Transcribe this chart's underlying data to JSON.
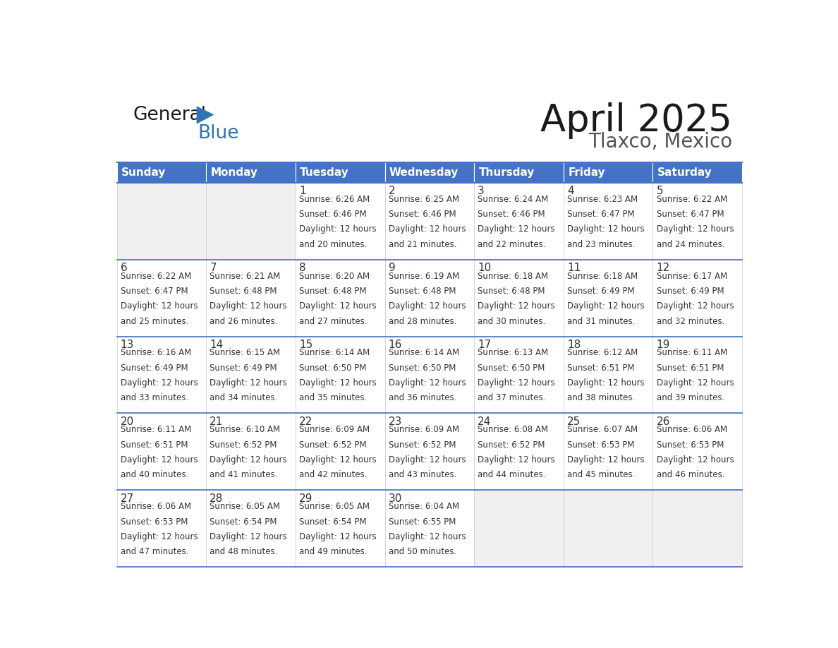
{
  "title": "April 2025",
  "subtitle": "Tlaxco, Mexico",
  "header_color": "#4472C4",
  "header_text_color": "#FFFFFF",
  "cell_bg_color": "#FFFFFF",
  "empty_cell_bg_color": "#F0F0F0",
  "border_color": "#4472C4",
  "separator_color": "#4472C4",
  "text_color": "#333333",
  "days_of_week": [
    "Sunday",
    "Monday",
    "Tuesday",
    "Wednesday",
    "Thursday",
    "Friday",
    "Saturday"
  ],
  "logo_color": "#2E75B6",
  "logo_black": "#1a1a1a",
  "calendar_data": [
    [
      {
        "day": "",
        "sunrise": "",
        "sunset": "",
        "daylight": ""
      },
      {
        "day": "",
        "sunrise": "",
        "sunset": "",
        "daylight": ""
      },
      {
        "day": "1",
        "sunrise": "6:26 AM",
        "sunset": "6:46 PM",
        "daylight": "12 hours and 20 minutes."
      },
      {
        "day": "2",
        "sunrise": "6:25 AM",
        "sunset": "6:46 PM",
        "daylight": "12 hours and 21 minutes."
      },
      {
        "day": "3",
        "sunrise": "6:24 AM",
        "sunset": "6:46 PM",
        "daylight": "12 hours and 22 minutes."
      },
      {
        "day": "4",
        "sunrise": "6:23 AM",
        "sunset": "6:47 PM",
        "daylight": "12 hours and 23 minutes."
      },
      {
        "day": "5",
        "sunrise": "6:22 AM",
        "sunset": "6:47 PM",
        "daylight": "12 hours and 24 minutes."
      }
    ],
    [
      {
        "day": "6",
        "sunrise": "6:22 AM",
        "sunset": "6:47 PM",
        "daylight": "12 hours and 25 minutes."
      },
      {
        "day": "7",
        "sunrise": "6:21 AM",
        "sunset": "6:48 PM",
        "daylight": "12 hours and 26 minutes."
      },
      {
        "day": "8",
        "sunrise": "6:20 AM",
        "sunset": "6:48 PM",
        "daylight": "12 hours and 27 minutes."
      },
      {
        "day": "9",
        "sunrise": "6:19 AM",
        "sunset": "6:48 PM",
        "daylight": "12 hours and 28 minutes."
      },
      {
        "day": "10",
        "sunrise": "6:18 AM",
        "sunset": "6:48 PM",
        "daylight": "12 hours and 30 minutes."
      },
      {
        "day": "11",
        "sunrise": "6:18 AM",
        "sunset": "6:49 PM",
        "daylight": "12 hours and 31 minutes."
      },
      {
        "day": "12",
        "sunrise": "6:17 AM",
        "sunset": "6:49 PM",
        "daylight": "12 hours and 32 minutes."
      }
    ],
    [
      {
        "day": "13",
        "sunrise": "6:16 AM",
        "sunset": "6:49 PM",
        "daylight": "12 hours and 33 minutes."
      },
      {
        "day": "14",
        "sunrise": "6:15 AM",
        "sunset": "6:49 PM",
        "daylight": "12 hours and 34 minutes."
      },
      {
        "day": "15",
        "sunrise": "6:14 AM",
        "sunset": "6:50 PM",
        "daylight": "12 hours and 35 minutes."
      },
      {
        "day": "16",
        "sunrise": "6:14 AM",
        "sunset": "6:50 PM",
        "daylight": "12 hours and 36 minutes."
      },
      {
        "day": "17",
        "sunrise": "6:13 AM",
        "sunset": "6:50 PM",
        "daylight": "12 hours and 37 minutes."
      },
      {
        "day": "18",
        "sunrise": "6:12 AM",
        "sunset": "6:51 PM",
        "daylight": "12 hours and 38 minutes."
      },
      {
        "day": "19",
        "sunrise": "6:11 AM",
        "sunset": "6:51 PM",
        "daylight": "12 hours and 39 minutes."
      }
    ],
    [
      {
        "day": "20",
        "sunrise": "6:11 AM",
        "sunset": "6:51 PM",
        "daylight": "12 hours and 40 minutes."
      },
      {
        "day": "21",
        "sunrise": "6:10 AM",
        "sunset": "6:52 PM",
        "daylight": "12 hours and 41 minutes."
      },
      {
        "day": "22",
        "sunrise": "6:09 AM",
        "sunset": "6:52 PM",
        "daylight": "12 hours and 42 minutes."
      },
      {
        "day": "23",
        "sunrise": "6:09 AM",
        "sunset": "6:52 PM",
        "daylight": "12 hours and 43 minutes."
      },
      {
        "day": "24",
        "sunrise": "6:08 AM",
        "sunset": "6:52 PM",
        "daylight": "12 hours and 44 minutes."
      },
      {
        "day": "25",
        "sunrise": "6:07 AM",
        "sunset": "6:53 PM",
        "daylight": "12 hours and 45 minutes."
      },
      {
        "day": "26",
        "sunrise": "6:06 AM",
        "sunset": "6:53 PM",
        "daylight": "12 hours and 46 minutes."
      }
    ],
    [
      {
        "day": "27",
        "sunrise": "6:06 AM",
        "sunset": "6:53 PM",
        "daylight": "12 hours and 47 minutes."
      },
      {
        "day": "28",
        "sunrise": "6:05 AM",
        "sunset": "6:54 PM",
        "daylight": "12 hours and 48 minutes."
      },
      {
        "day": "29",
        "sunrise": "6:05 AM",
        "sunset": "6:54 PM",
        "daylight": "12 hours and 49 minutes."
      },
      {
        "day": "30",
        "sunrise": "6:04 AM",
        "sunset": "6:55 PM",
        "daylight": "12 hours and 50 minutes."
      },
      {
        "day": "",
        "sunrise": "",
        "sunset": "",
        "daylight": ""
      },
      {
        "day": "",
        "sunrise": "",
        "sunset": "",
        "daylight": ""
      },
      {
        "day": "",
        "sunrise": "",
        "sunset": "",
        "daylight": ""
      }
    ]
  ]
}
